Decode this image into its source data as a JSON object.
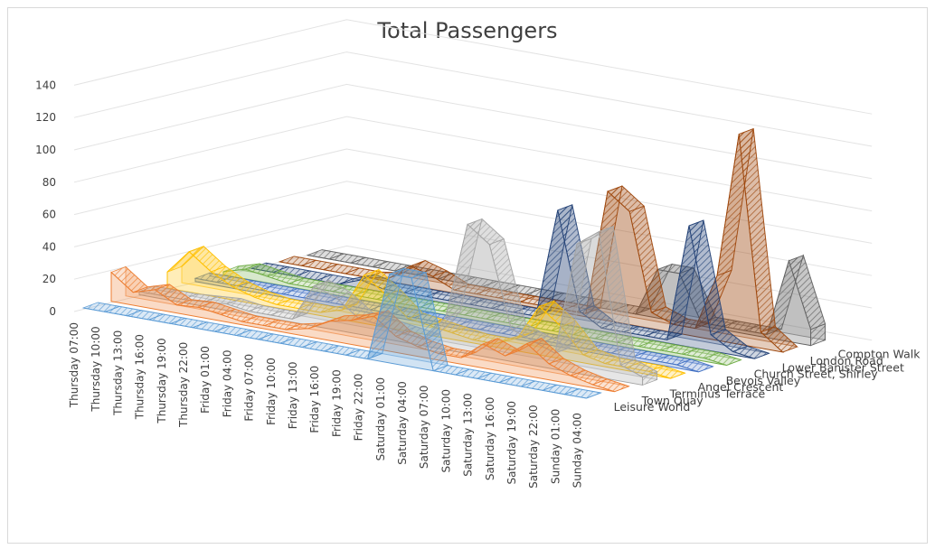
{
  "chart_data": {
    "type": "area",
    "subtype": "3d-area",
    "title": "Total Passengers",
    "xlabel": "",
    "ylabel": "",
    "ylim": [
      0,
      140
    ],
    "y_ticks": [
      0,
      20,
      40,
      60,
      80,
      100,
      120,
      140
    ],
    "grid": true,
    "legend": "none",
    "categories": [
      "Thursday 07:00",
      "Thursday 10:00",
      "Thursday 13:00",
      "Thursday 16:00",
      "Thursday 19:00",
      "Thursday 22:00",
      "Friday 01:00",
      "Friday 04:00",
      "Friday 07:00",
      "Friday 10:00",
      "Friday 13:00",
      "Friday 16:00",
      "Friday 19:00",
      "Friday 22:00",
      "Saturday 01:00",
      "Saturday 04:00",
      "Saturday 07:00",
      "Saturday 10:00",
      "Saturday 13:00",
      "Saturday 16:00",
      "Saturday 19:00",
      "Saturday 22:00",
      "Sunday 01:00",
      "Sunday 04:00"
    ],
    "series": [
      {
        "name": "Leisure World",
        "color": "#5b9bd5",
        "values": [
          0,
          0,
          0,
          0,
          0,
          0,
          0,
          0,
          0,
          0,
          0,
          0,
          0,
          0,
          55,
          55,
          0,
          0,
          0,
          0,
          0,
          0,
          0,
          0
        ]
      },
      {
        "name": "Town Quay",
        "color": "#ed7d31",
        "values": [
          18,
          8,
          12,
          5,
          6,
          4,
          2,
          2,
          2,
          5,
          12,
          15,
          20,
          10,
          6,
          4,
          4,
          15,
          10,
          20,
          10,
          5,
          2,
          0
        ]
      },
      {
        "name": "Terminus Terrace",
        "color": "#a5a5a5",
        "values": [
          2,
          2,
          2,
          3,
          4,
          2,
          2,
          2,
          25,
          20,
          10,
          8,
          6,
          4,
          20,
          80,
          70,
          20,
          15,
          10,
          80,
          90,
          10,
          5
        ]
      },
      {
        "name": "Angel Crescent",
        "color": "#ffc000",
        "values": [
          10,
          25,
          15,
          8,
          4,
          2,
          2,
          2,
          6,
          30,
          20,
          8,
          6,
          4,
          2,
          2,
          8,
          30,
          20,
          5,
          2,
          2,
          2,
          0
        ]
      },
      {
        "name": "Bevois Valley",
        "color": "#4472c4",
        "values": [
          2,
          2,
          2,
          2,
          2,
          2,
          2,
          2,
          2,
          2,
          2,
          2,
          2,
          2,
          2,
          2,
          2,
          2,
          2,
          2,
          2,
          2,
          2,
          0
        ]
      },
      {
        "name": "Church Street, Shirley",
        "color": "#70ad47",
        "values": [
          2,
          6,
          4,
          2,
          2,
          2,
          2,
          2,
          2,
          2,
          2,
          2,
          2,
          2,
          2,
          2,
          2,
          2,
          2,
          2,
          2,
          2,
          2,
          0
        ]
      },
      {
        "name": "Lower Banister Street",
        "color": "#264478",
        "values": [
          0,
          0,
          0,
          0,
          0,
          5,
          2,
          2,
          2,
          2,
          2,
          2,
          2,
          2,
          70,
          10,
          2,
          2,
          2,
          2,
          75,
          10,
          2,
          0
        ]
      },
      {
        "name": "London Road",
        "color": "#9e480e",
        "values": [
          0,
          0,
          0,
          0,
          0,
          2,
          12,
          8,
          2,
          2,
          2,
          2,
          2,
          2,
          2,
          80,
          70,
          10,
          5,
          5,
          40,
          130,
          10,
          0
        ]
      },
      {
        "name": "Compton Walk",
        "color": "#636363",
        "values": [
          0,
          0,
          0,
          0,
          0,
          0,
          0,
          0,
          0,
          0,
          0,
          0,
          0,
          0,
          0,
          0,
          30,
          30,
          2,
          2,
          2,
          2,
          50,
          10
        ]
      }
    ]
  }
}
